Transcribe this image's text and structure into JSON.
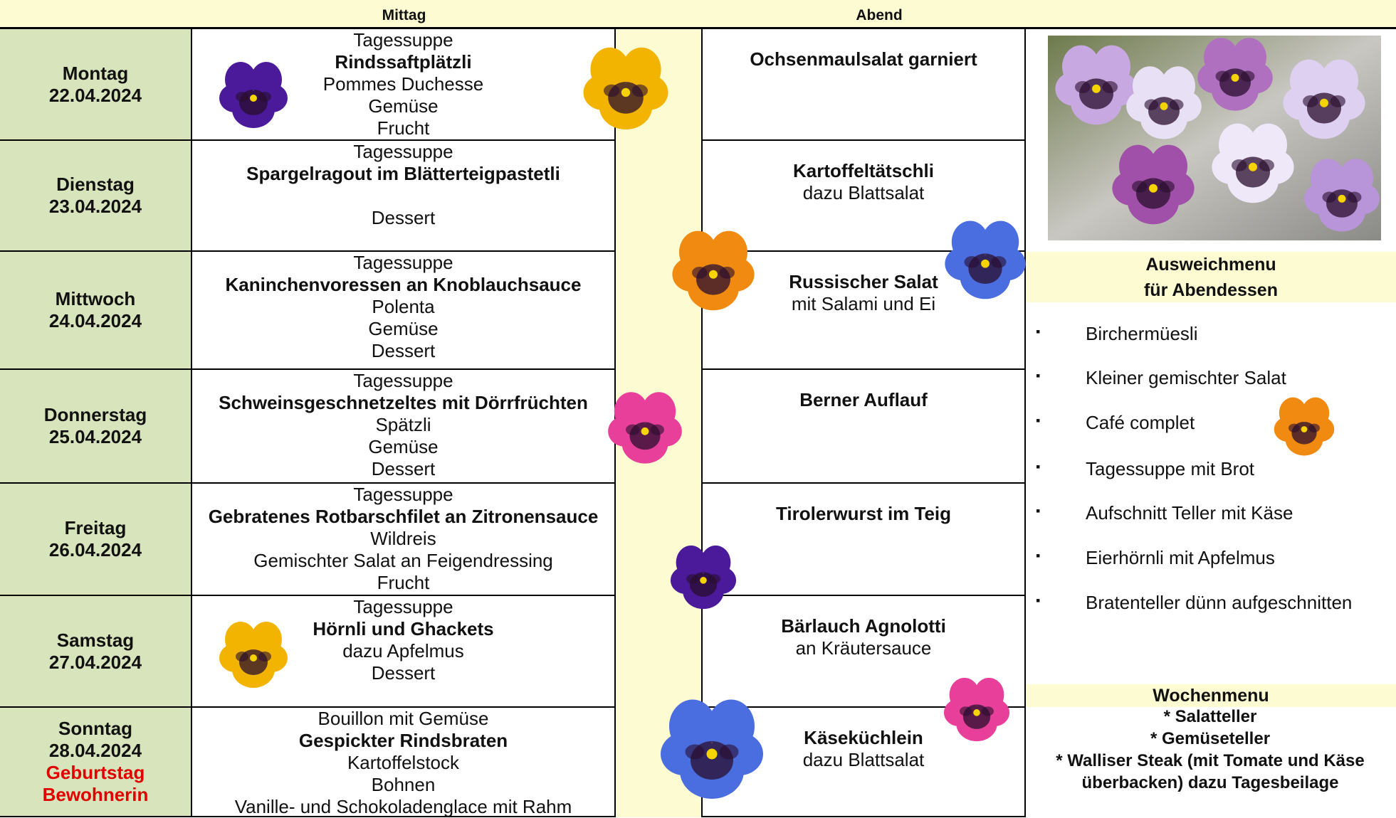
{
  "header": {
    "lunch": "Mittag",
    "dinner": "Abend"
  },
  "days": [
    {
      "day": "Montag",
      "date": "22.04.2024",
      "lunch": [
        {
          "text": "Tagessuppe"
        },
        {
          "text": "Rindssaftplätzli",
          "bold": true
        },
        {
          "text": "Pommes Duchesse"
        },
        {
          "text": "Gemüse"
        },
        {
          "text": "Frucht"
        }
      ],
      "dinner": [
        {
          "text": "Ochsenmaulsalat garniert",
          "bold": true
        }
      ]
    },
    {
      "day": "Dienstag",
      "date": "23.04.2024",
      "lunch": [
        {
          "text": "Tagessuppe"
        },
        {
          "text": "Spargelragout im Blätterteigpastetli",
          "bold": true
        },
        {
          "text": "Dessert",
          "spaced": true
        }
      ],
      "dinner": [
        {
          "text": "Kartoffeltätschli",
          "bold": true
        },
        {
          "text": "dazu Blattsalat"
        }
      ]
    },
    {
      "day": "Mittwoch",
      "date": "24.04.2024",
      "lunch": [
        {
          "text": "Tagessuppe"
        },
        {
          "text": "Kaninchenvoressen an Knoblauchsauce",
          "bold": true
        },
        {
          "text": "Polenta"
        },
        {
          "text": "Gemüse"
        },
        {
          "text": "Dessert"
        }
      ],
      "dinner": [
        {
          "text": "Russischer Salat",
          "bold": true
        },
        {
          "text": "mit Salami und Ei"
        }
      ]
    },
    {
      "day": "Donnerstag",
      "date": "25.04.2024",
      "lunch": [
        {
          "text": "Tagessuppe"
        },
        {
          "text": "Schweinsgeschnetzeltes mit Dörrfrüchten",
          "bold": true
        },
        {
          "text": "Spätzli"
        },
        {
          "text": "Gemüse"
        },
        {
          "text": "Dessert"
        }
      ],
      "dinner": [
        {
          "text": "Berner Auflauf",
          "bold": true
        }
      ]
    },
    {
      "day": "Freitag",
      "date": "26.04.2024",
      "lunch": [
        {
          "text": "Tagessuppe"
        },
        {
          "text": "Gebratenes Rotbarschfilet an Zitronensauce",
          "bold": true
        },
        {
          "text": "Wildreis"
        },
        {
          "text": "Gemischter Salat an Feigendressing"
        },
        {
          "text": "Frucht"
        }
      ],
      "dinner": [
        {
          "text": "Tirolerwurst im Teig",
          "bold": true
        }
      ]
    },
    {
      "day": "Samstag",
      "date": "27.04.2024",
      "lunch": [
        {
          "text": "Tagessuppe"
        },
        {
          "text": "Hörnli und Ghackets",
          "bold": true
        },
        {
          "text": "dazu Apfelmus"
        },
        {
          "text": "Dessert"
        }
      ],
      "dinner": [
        {
          "text": "Bärlauch Agnolotti",
          "bold": true
        },
        {
          "text": "an Kräutersauce"
        }
      ]
    },
    {
      "day": "Sonntag",
      "date": "28.04.2024",
      "note": [
        "Geburtstag",
        "Bewohnerin"
      ],
      "lunch": [
        {
          "text": "Bouillon mit Gemüse"
        },
        {
          "text": "Gespickter Rindsbraten",
          "bold": true
        },
        {
          "text": "Kartoffelstock"
        },
        {
          "text": "Bohnen"
        },
        {
          "text": "Vanille- und Schokoladenglace mit Rahm"
        }
      ],
      "dinner": [
        {
          "text": "Käseküchlein",
          "bold": true
        },
        {
          "text": "dazu Blattsalat"
        }
      ]
    }
  ],
  "alternative_menu": {
    "title": [
      "Ausweichmenu",
      "für Abendessen"
    ],
    "items": [
      "Birchermüesli",
      "Kleiner gemischter Salat",
      "Café complet",
      "Tagessuppe mit Brot",
      "Aufschnitt Teller mit Käse",
      "Eierhörnli mit Apfelmus",
      "Bratenteller dünn aufgeschnitten"
    ]
  },
  "weekly_menu": {
    "title": "Wochenmenu",
    "items": [
      "* Salatteller",
      "* Gemüseteller",
      "* Walliser Steak (mit Tomate und Käse überbacken) dazu Tagesbeilage"
    ]
  }
}
